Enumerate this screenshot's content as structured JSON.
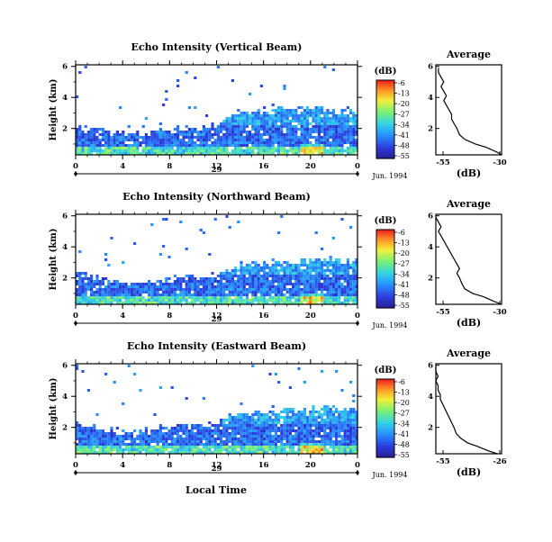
{
  "figure": {
    "xlabel": "Local Time",
    "date_label": "Jun. 1994",
    "day_label": "29"
  },
  "chart_data": [
    {
      "type": "heatmap",
      "title": "Echo Intensity (Vertical Beam)",
      "xlabel": "",
      "ylabel": "Height (km)",
      "x_ticks": [
        "0",
        "4",
        "8",
        "12",
        "16",
        "20",
        "0"
      ],
      "x_range_hours": [
        0,
        24
      ],
      "y_ticks": [
        "2",
        "4",
        "6"
      ],
      "ylim_km": [
        0.3,
        6.1
      ],
      "colorbar": {
        "unit": "(dB)",
        "ticks": [
          "-6",
          "-13",
          "-20",
          "-27",
          "-34",
          "-41",
          "-48",
          "-55"
        ]
      },
      "echo_top_km": [
        2.3,
        2.2,
        2.0,
        1.9,
        1.8,
        1.7,
        1.8,
        1.9,
        2.0,
        2.1,
        2.0,
        2.2,
        2.4,
        3.0,
        3.2,
        3.0,
        3.2,
        3.3,
        3.4,
        3.3,
        3.3,
        3.4,
        3.2,
        3.1,
        3.0
      ],
      "profile": {
        "title": "Average",
        "xlabel": "(dB)",
        "x_ticks": [
          "-55",
          "-30"
        ],
        "xlim": [
          -55,
          -30
        ],
        "y_ticks": [
          "2",
          "4",
          "6"
        ],
        "height_km": [
          0.3,
          0.5,
          0.8,
          1.0,
          1.3,
          1.6,
          2.0,
          2.3,
          2.6,
          2.9,
          3.2,
          3.5,
          3.8,
          4.1,
          4.4,
          4.7,
          5.0,
          5.3,
          5.6,
          5.9
        ],
        "db": [
          -30,
          -32,
          -36,
          -40,
          -44,
          -46,
          -47,
          -48,
          -49,
          -49,
          -50,
          -51,
          -52,
          -51,
          -52,
          -53,
          -52,
          -53,
          -54,
          -54
        ]
      }
    },
    {
      "type": "heatmap",
      "title": "Echo Intensity (Northward Beam)",
      "xlabel": "",
      "ylabel": "Height (km)",
      "x_ticks": [
        "0",
        "4",
        "8",
        "12",
        "16",
        "20",
        "0"
      ],
      "x_range_hours": [
        0,
        24
      ],
      "y_ticks": [
        "2",
        "4",
        "6"
      ],
      "ylim_km": [
        0.3,
        6.1
      ],
      "colorbar": {
        "unit": "(dB)",
        "ticks": [
          "-6",
          "-13",
          "-20",
          "-27",
          "-34",
          "-41",
          "-48",
          "-55"
        ]
      },
      "echo_top_km": [
        2.4,
        2.2,
        2.0,
        1.8,
        1.7,
        1.7,
        1.8,
        1.9,
        2.1,
        2.2,
        2.1,
        2.2,
        2.3,
        2.6,
        2.9,
        3.0,
        3.0,
        3.1,
        3.0,
        3.1,
        3.2,
        3.4,
        3.3,
        3.2,
        3.1
      ],
      "profile": {
        "title": "Average",
        "xlabel": "(dB)",
        "x_ticks": [
          "-55",
          "-30"
        ],
        "xlim": [
          -55,
          -30
        ],
        "y_ticks": [
          "2",
          "4",
          "6"
        ],
        "height_km": [
          0.3,
          0.5,
          0.8,
          1.0,
          1.3,
          1.6,
          2.0,
          2.3,
          2.6,
          2.9,
          3.2,
          3.5,
          3.8,
          4.1,
          4.4,
          4.7,
          5.0,
          5.3,
          5.6,
          5.9
        ],
        "db": [
          -30,
          -33,
          -37,
          -41,
          -44,
          -45,
          -46,
          -47,
          -46,
          -47,
          -48,
          -49,
          -50,
          -51,
          -52,
          -53,
          -54,
          -53,
          -54,
          -55
        ]
      }
    },
    {
      "type": "heatmap",
      "title": "Echo Intensity (Eastward Beam)",
      "xlabel": "Local Time",
      "ylabel": "Height (km)",
      "x_ticks": [
        "0",
        "4",
        "8",
        "12",
        "16",
        "20",
        "0"
      ],
      "x_range_hours": [
        0,
        24
      ],
      "y_ticks": [
        "2",
        "4",
        "6"
      ],
      "ylim_km": [
        0.3,
        6.1
      ],
      "colorbar": {
        "unit": "(dB)",
        "ticks": [
          "-6",
          "-13",
          "-20",
          "-27",
          "-34",
          "-41",
          "-48",
          "-55"
        ]
      },
      "echo_top_km": [
        2.4,
        2.2,
        2.1,
        1.9,
        1.8,
        1.8,
        1.9,
        2.0,
        2.2,
        2.3,
        2.2,
        2.3,
        2.4,
        2.8,
        3.0,
        3.1,
        3.0,
        3.1,
        3.2,
        3.2,
        3.3,
        3.4,
        3.3,
        3.2,
        3.1
      ],
      "profile": {
        "title": "Average",
        "xlabel": "(dB)",
        "x_ticks": [
          "-55",
          "-26"
        ],
        "xlim": [
          -55,
          -26
        ],
        "y_ticks": [
          "2",
          "4",
          "6"
        ],
        "height_km": [
          0.3,
          0.5,
          0.8,
          1.0,
          1.3,
          1.6,
          2.0,
          2.3,
          2.6,
          2.9,
          3.2,
          3.5,
          3.8,
          4.1,
          4.4,
          4.7,
          5.0,
          5.3,
          5.6,
          5.9
        ],
        "db": [
          -28,
          -32,
          -37,
          -41,
          -44,
          -46,
          -47,
          -48,
          -49,
          -50,
          -51,
          -52,
          -53,
          -53,
          -54,
          -54,
          -55,
          -54,
          -55,
          -55
        ]
      }
    }
  ]
}
